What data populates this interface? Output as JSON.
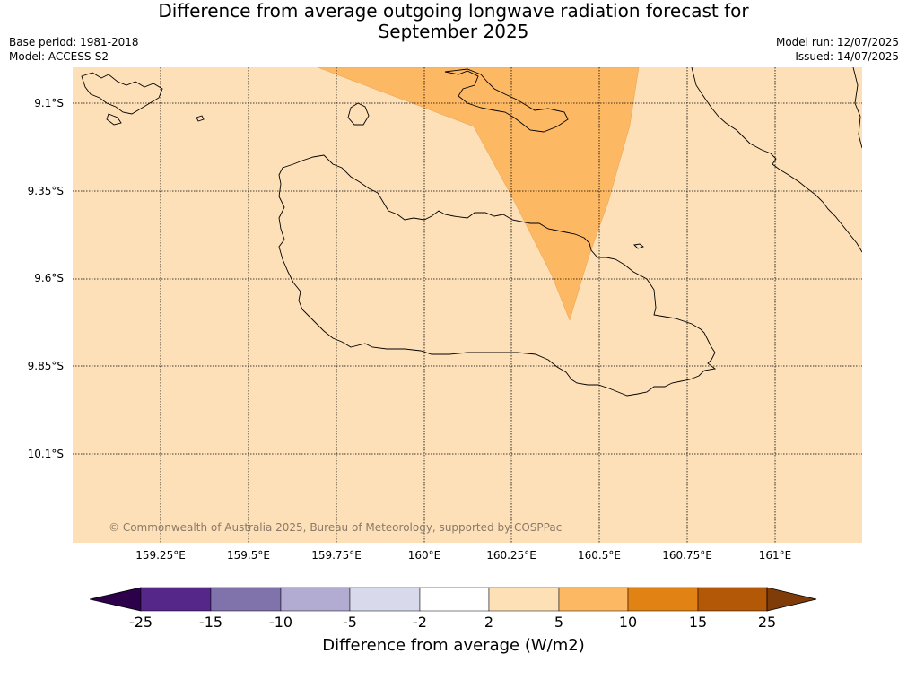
{
  "header": {
    "title_line1": "Difference from average outgoing longwave radiation forecast for",
    "title_line2": "September 2025",
    "base_period": "Base period: 1981-2018",
    "model": "Model: ACCESS-S2",
    "model_run": "Model run: 12/07/2025",
    "issued": "Issued: 14/07/2025"
  },
  "map": {
    "copyright": "© Commonwealth of Australia 2025, Bureau of Meteorology, supported by COSPPac",
    "background_color": "#fde0b8",
    "anomaly_color": "#fdb863",
    "lat_labels": [
      "9.1°S",
      "9.35°S",
      "9.6°S",
      "9.85°S",
      "10.1°S"
    ],
    "lon_labels": [
      "159.25°E",
      "159.5°E",
      "159.75°E",
      "160°E",
      "160.25°E",
      "160.5°E",
      "160.75°E",
      "161°E"
    ]
  },
  "colorbar": {
    "title": "Difference from average (W/m2)",
    "ticks": [
      "-25",
      "-15",
      "-10",
      "-5",
      "-2",
      "2",
      "5",
      "10",
      "15",
      "25"
    ],
    "colors": [
      "#2d004b",
      "#542788",
      "#8073ac",
      "#b2abd2",
      "#d8daeb",
      "#ffffff",
      "#fee0b6",
      "#fdb863",
      "#e08214",
      "#b35806",
      "#7f3b08"
    ]
  }
}
